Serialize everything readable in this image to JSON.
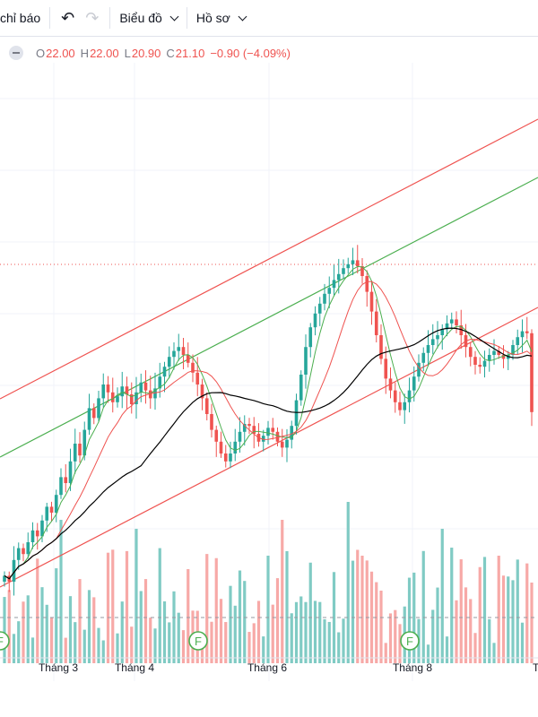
{
  "toolbar": {
    "indicators_label": "chỉ báo",
    "undo_icon": "undo-icon",
    "redo_icon": "redo-icon",
    "chart_menu_label": "Biểu đồ",
    "profile_menu_label": "Hồ sơ"
  },
  "ohlc": {
    "o_label": "O",
    "o_value": "22.00",
    "h_label": "H",
    "h_value": "22.00",
    "l_label": "L",
    "l_value": "20.90",
    "c_label": "C",
    "c_value": "21.10",
    "change": "−0.90 (−4.09%)"
  },
  "colors": {
    "up": "#26a69a",
    "down": "#ef5350",
    "ma_fast": "#4caf50",
    "ma_slow": "#ef5350",
    "ma_long": "#000000",
    "channel": "#ef5350",
    "channel_mid": "#4caf50"
  },
  "chart_data": {
    "type": "candlestick",
    "x_tick_labels": [
      "Tháng 3",
      "Tháng 4",
      "Tháng 6",
      "Tháng 8",
      "Th"
    ],
    "event_markers": [
      {
        "label": "F"
      },
      {
        "label": "F"
      },
      {
        "label": "F"
      }
    ],
    "closes": [
      12.8,
      12.5,
      13.6,
      14.2,
      13.9,
      14.5,
      15.1,
      14.8,
      15.6,
      16.3,
      16.0,
      16.9,
      17.8,
      17.5,
      18.6,
      19.5,
      18.9,
      20.2,
      21.3,
      20.8,
      21.8,
      22.5,
      22.1,
      21.6,
      21.9,
      22.4,
      22.0,
      21.5,
      22.1,
      22.6,
      22.2,
      21.8,
      22.3,
      22.9,
      23.4,
      23.9,
      24.2,
      24.4,
      24.0,
      23.6,
      23.1,
      22.5,
      21.8,
      21.0,
      20.2,
      19.6,
      19.0,
      18.6,
      19.0,
      19.6,
      20.1,
      20.5,
      20.4,
      20.0,
      19.6,
      19.9,
      20.3,
      20.1,
      19.6,
      19.3,
      19.7,
      20.4,
      21.7,
      23.0,
      24.4,
      25.4,
      26.1,
      26.6,
      27.1,
      27.4,
      27.8,
      28.1,
      28.4,
      28.6,
      28.8,
      28.5,
      28.0,
      27.2,
      26.2,
      25.0,
      23.8,
      22.8,
      22.2,
      21.6,
      21.2,
      21.6,
      22.2,
      22.9,
      23.6,
      24.1,
      24.5,
      24.8,
      25.0,
      25.3,
      25.6,
      25.8,
      25.5,
      25.0,
      24.4,
      23.9,
      23.5,
      23.4,
      23.7,
      24.0,
      24.2,
      24.0,
      23.8,
      24.0,
      24.5,
      24.9,
      25.2,
      25.1,
      21.1
    ],
    "volume_ma_level": 0.3,
    "channel_note": "ascending regression channel with upper, middle and lower lines"
  }
}
